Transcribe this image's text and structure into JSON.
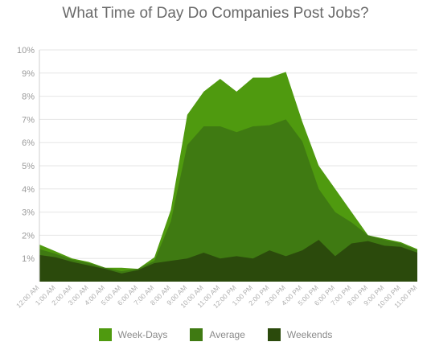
{
  "chart_data": {
    "type": "area",
    "title": "What Time of Day Do Companies Post Jobs?",
    "xlabel": "",
    "ylabel": "",
    "ylim": [
      0,
      10
    ],
    "grid": true,
    "legend_position": "bottom",
    "yticks": [
      "1%",
      "2%",
      "3%",
      "4%",
      "5%",
      "6%",
      "7%",
      "8%",
      "9%",
      "10%"
    ],
    "x": [
      "12:00 AM",
      "1:00 AM",
      "2:00 AM",
      "3:00 AM",
      "4:00 AM",
      "5:00 AM",
      "6:00 AM",
      "7:00 AM",
      "8:00 AM",
      "9:00 AM",
      "10:00 AM",
      "11:00 AM",
      "12:00 PM",
      "1:00 PM",
      "2:00 PM",
      "3:00 PM",
      "4:00 PM",
      "5:00 PM",
      "6:00 PM",
      "7:00 PM",
      "8:00 PM",
      "9:00 PM",
      "10:00 PM",
      "11:00 PM"
    ],
    "series": [
      {
        "name": "Week-Days",
        "color": "#4f9a0f",
        "values": [
          1.6,
          1.3,
          1.0,
          0.85,
          0.6,
          0.6,
          0.55,
          1.05,
          3.1,
          7.2,
          8.2,
          8.75,
          8.2,
          8.8,
          8.8,
          9.05,
          6.9,
          5.0,
          4.0,
          3.0,
          2.0,
          1.85,
          1.7,
          1.4
        ]
      },
      {
        "name": "Average",
        "color": "#3f7a12",
        "values": [
          1.4,
          1.2,
          0.95,
          0.8,
          0.6,
          0.45,
          0.55,
          0.9,
          2.6,
          5.9,
          6.7,
          6.7,
          6.45,
          6.7,
          6.75,
          7.0,
          6.05,
          4.0,
          3.0,
          2.55,
          2.0,
          1.8,
          1.65,
          1.35
        ]
      },
      {
        "name": "Weekends",
        "color": "#2b4a0c",
        "values": [
          1.15,
          1.05,
          0.85,
          0.7,
          0.55,
          0.35,
          0.5,
          0.8,
          0.9,
          1.0,
          1.25,
          1.0,
          1.1,
          1.0,
          1.35,
          1.1,
          1.35,
          1.8,
          1.1,
          1.65,
          1.75,
          1.55,
          1.5,
          1.25
        ]
      }
    ]
  }
}
